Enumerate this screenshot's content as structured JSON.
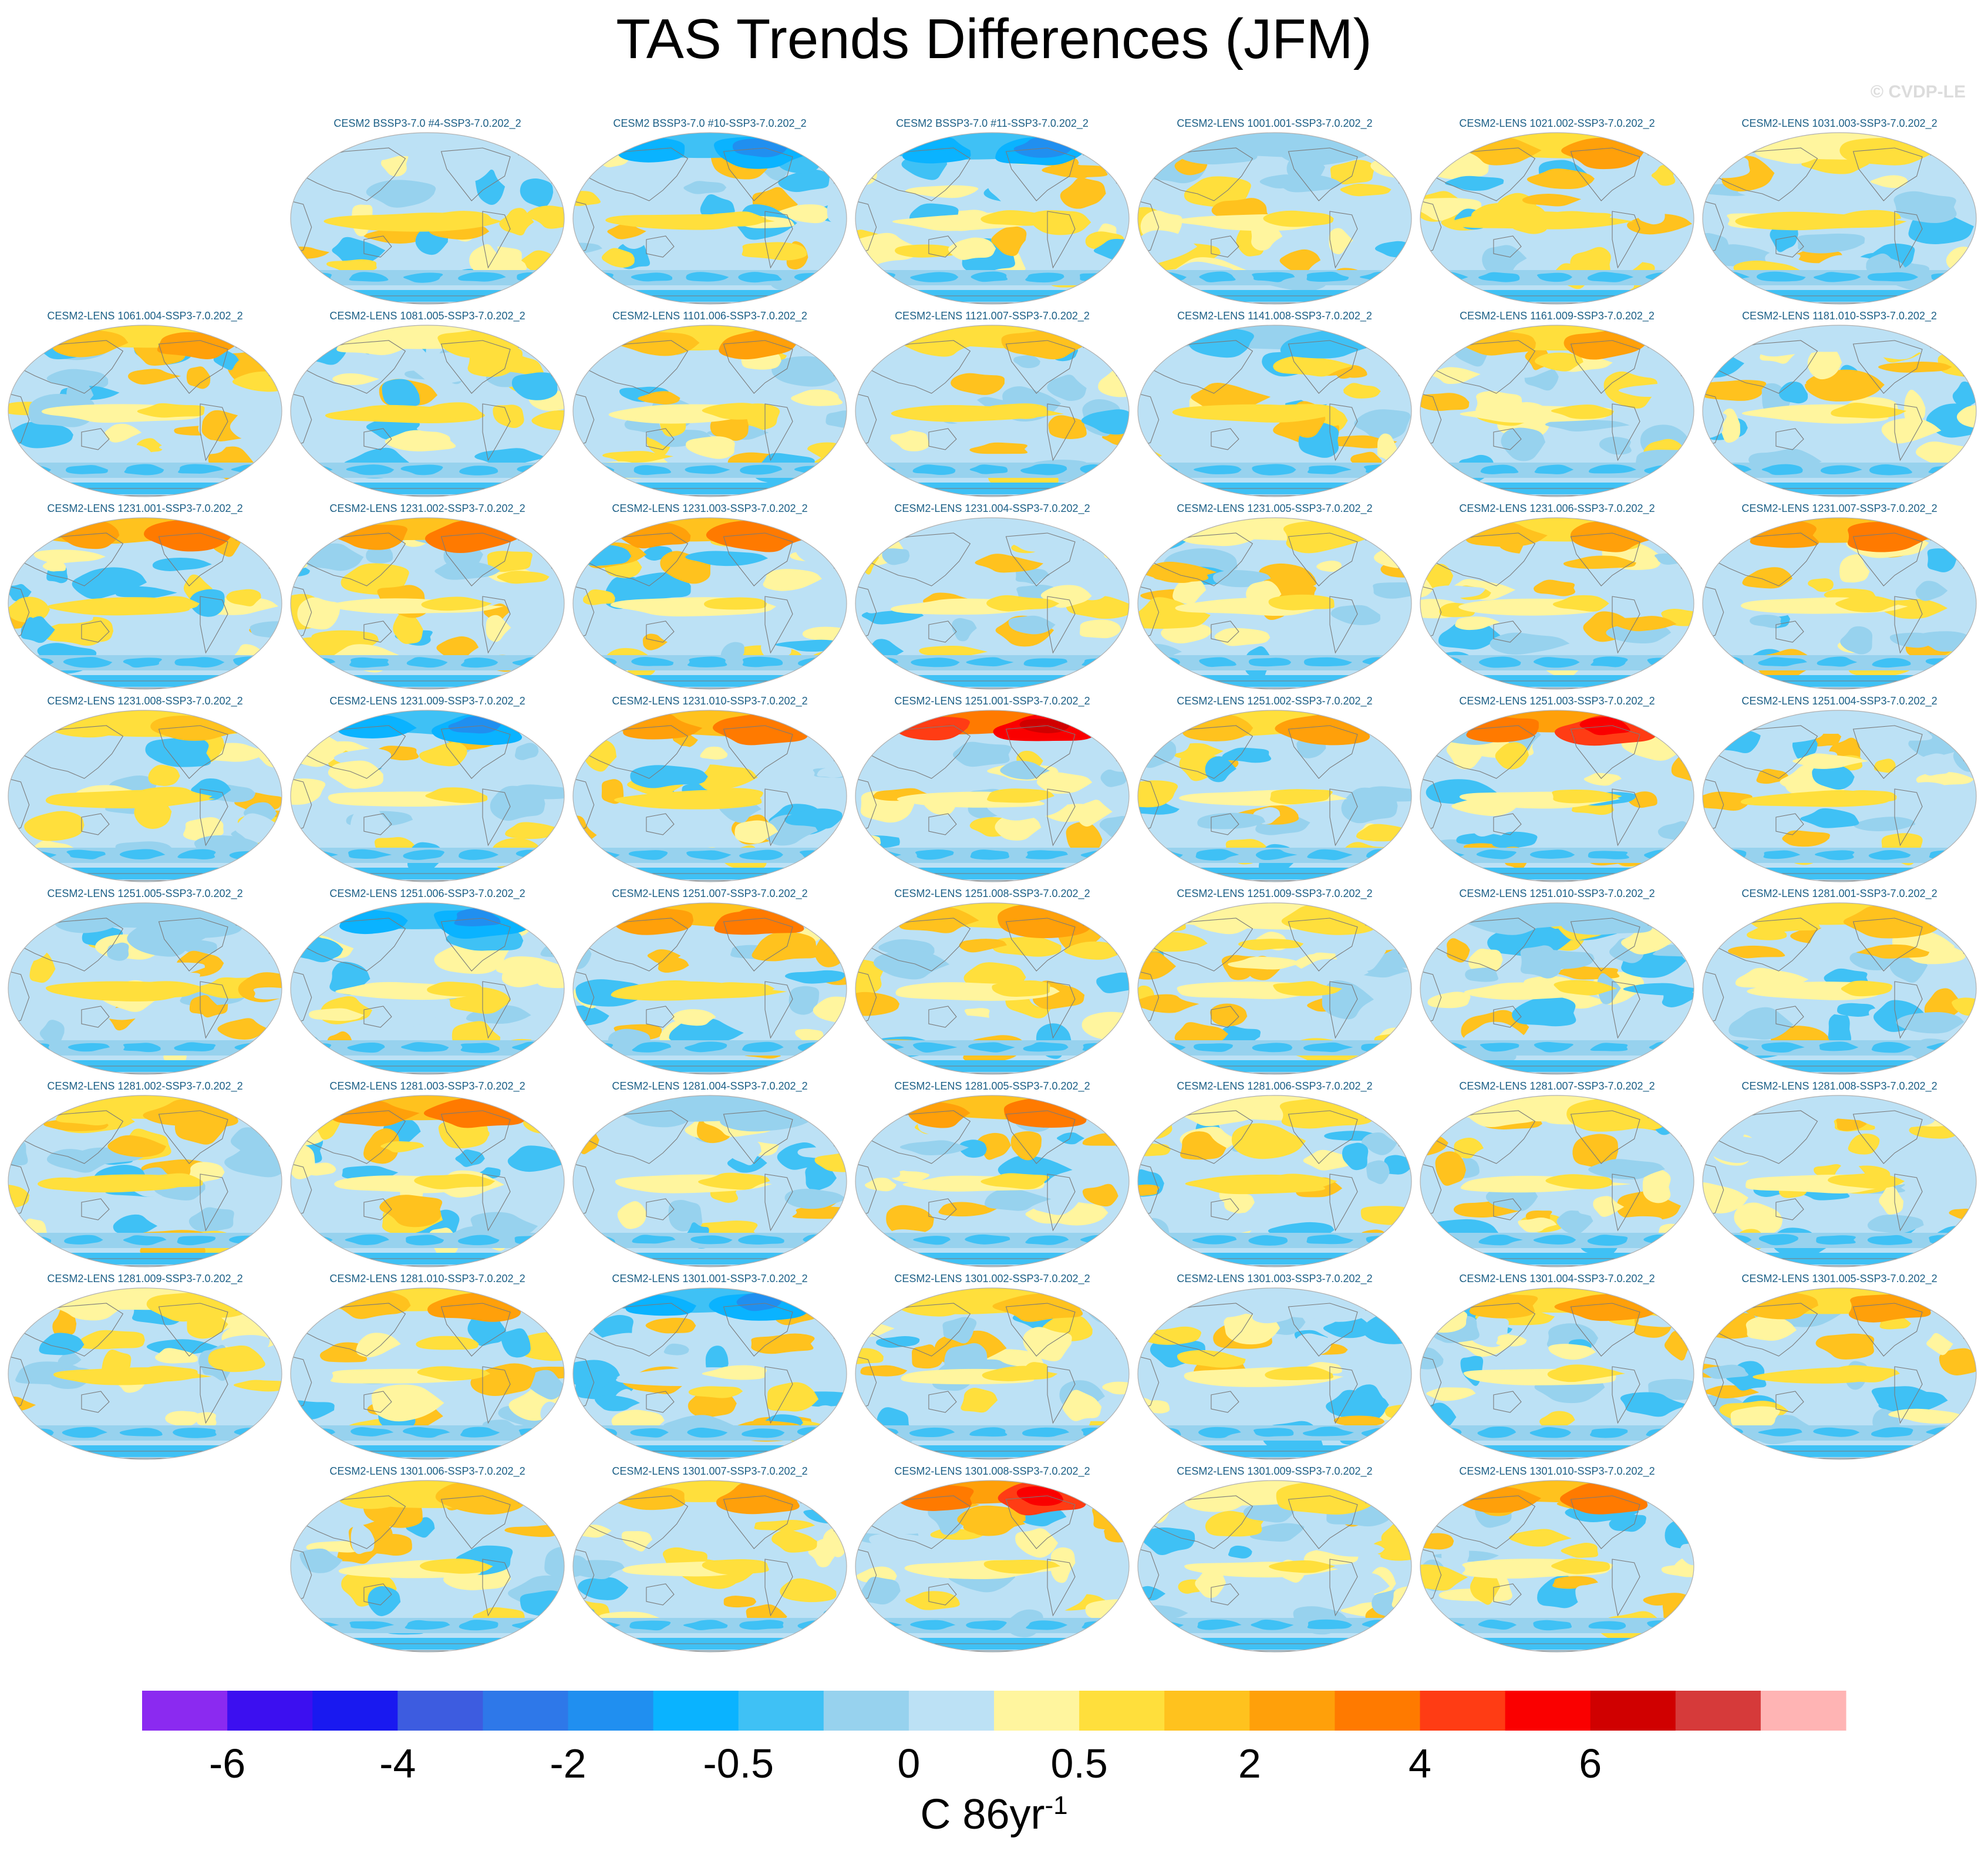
{
  "title": "TAS Trends Differences (JFM)",
  "watermark": "© CVDP-LE",
  "colorbar_units": {
    "base": "C 86yr",
    "exp": "-1"
  },
  "chart_data": {
    "type": "heatmap",
    "title": "TAS Trends Differences (JFM)",
    "map_projection": "Robinson-like global ellipse, Pacific-centered",
    "grid_columns": 7,
    "colorbar": {
      "colors": [
        "#8b2af0",
        "#3c0ff0",
        "#1919f0",
        "#3d5ce0",
        "#2e78e9",
        "#208ff0",
        "#0ab3ff",
        "#3fc1f5",
        "#97d2ee",
        "#bce1f5",
        "#fff59e",
        "#ffdf3c",
        "#ffc21e",
        "#ffa00a",
        "#ff7a00",
        "#ff3c14",
        "#fa0000",
        "#d00000",
        "#d63a3a",
        "#ffb4b4"
      ],
      "tick_labels": [
        "-6",
        "-4",
        "-2",
        "-0.5",
        "0",
        "0.5",
        "2",
        "4",
        "6"
      ],
      "tick_boundaries": [
        1,
        3,
        5,
        7,
        9,
        11,
        13,
        15,
        17
      ],
      "units": "C 86yr^-1"
    },
    "panels": [
      {
        "row": 0,
        "col": 1,
        "label": "CESM2 BSSP3-7.0 #4-SSP3-7.0.202_2",
        "arctic": -0.5,
        "enso": 0.5,
        "seed": 11
      },
      {
        "row": 0,
        "col": 2,
        "label": "CESM2 BSSP3-7.0 #10-SSP3-7.0.202_2",
        "arctic": -2,
        "enso": 0.5,
        "seed": 12
      },
      {
        "row": 0,
        "col": 3,
        "label": "CESM2 BSSP3-7.0 #11-SSP3-7.0.202_2",
        "arctic": -2,
        "enso": 0.3,
        "seed": 13
      },
      {
        "row": 0,
        "col": 4,
        "label": "CESM2-LENS 1001.001-SSP3-7.0.202_2",
        "arctic": -1,
        "enso": 0.3,
        "seed": 14
      },
      {
        "row": 0,
        "col": 5,
        "label": "CESM2-LENS 1021.002-SSP3-7.0.202_2",
        "arctic": 1.5,
        "enso": 0.5,
        "seed": 15
      },
      {
        "row": 0,
        "col": 6,
        "label": "CESM2-LENS 1031.003-SSP3-7.0.202_2",
        "arctic": 0.5,
        "enso": 0.5,
        "seed": 16
      },
      {
        "row": 1,
        "col": 0,
        "label": "CESM2-LENS 1061.004-SSP3-7.0.202_2",
        "arctic": 1.5,
        "enso": 0.3,
        "seed": 21
      },
      {
        "row": 1,
        "col": 1,
        "label": "CESM2-LENS 1081.005-SSP3-7.0.202_2",
        "arctic": 0.5,
        "enso": 0.5,
        "seed": 22
      },
      {
        "row": 1,
        "col": 2,
        "label": "CESM2-LENS 1101.006-SSP3-7.0.202_2",
        "arctic": 1.5,
        "enso": 0.3,
        "seed": 23
      },
      {
        "row": 1,
        "col": 3,
        "label": "CESM2-LENS 1121.007-SSP3-7.0.202_2",
        "arctic": 1,
        "enso": 0.5,
        "seed": 24
      },
      {
        "row": 1,
        "col": 4,
        "label": "CESM2-LENS 1141.008-SSP3-7.0.202_2",
        "arctic": -1.5,
        "enso": 0.5,
        "seed": 25
      },
      {
        "row": 1,
        "col": 5,
        "label": "CESM2-LENS 1161.009-SSP3-7.0.202_2",
        "arctic": 1.5,
        "enso": 0.3,
        "seed": 26
      },
      {
        "row": 1,
        "col": 6,
        "label": "CESM2-LENS 1181.010-SSP3-7.0.202_2",
        "arctic": -0.5,
        "enso": 0.3,
        "seed": 27
      },
      {
        "row": 2,
        "col": 0,
        "label": "CESM2-LENS 1231.001-SSP3-7.0.202_2",
        "arctic": 2,
        "enso": 0.5,
        "seed": 31
      },
      {
        "row": 2,
        "col": 1,
        "label": "CESM2-LENS 1231.002-SSP3-7.0.202_2",
        "arctic": 2,
        "enso": 0.3,
        "seed": 32
      },
      {
        "row": 2,
        "col": 2,
        "label": "CESM2-LENS 1231.003-SSP3-7.0.202_2",
        "arctic": 2,
        "enso": 0.3,
        "seed": 33
      },
      {
        "row": 2,
        "col": 3,
        "label": "CESM2-LENS 1231.004-SSP3-7.0.202_2",
        "arctic": -0.5,
        "enso": 0.3,
        "seed": 34
      },
      {
        "row": 2,
        "col": 4,
        "label": "CESM2-LENS 1231.005-SSP3-7.0.202_2",
        "arctic": 0.5,
        "enso": 0.3,
        "seed": 35
      },
      {
        "row": 2,
        "col": 5,
        "label": "CESM2-LENS 1231.006-SSP3-7.0.202_2",
        "arctic": 1.5,
        "enso": 0.3,
        "seed": 36
      },
      {
        "row": 2,
        "col": 6,
        "label": "CESM2-LENS 1231.007-SSP3-7.0.202_2",
        "arctic": 2,
        "enso": 0.3,
        "seed": 37
      },
      {
        "row": 3,
        "col": 0,
        "label": "CESM2-LENS 1231.008-SSP3-7.0.202_2",
        "arctic": 1,
        "enso": 0.5,
        "seed": 41
      },
      {
        "row": 3,
        "col": 1,
        "label": "CESM2-LENS 1231.009-SSP3-7.0.202_2",
        "arctic": -2,
        "enso": 0.3,
        "seed": 42
      },
      {
        "row": 3,
        "col": 2,
        "label": "CESM2-LENS 1231.010-SSP3-7.0.202_2",
        "arctic": 2,
        "enso": 0.5,
        "seed": 43
      },
      {
        "row": 3,
        "col": 3,
        "label": "CESM2-LENS 1251.001-SSP3-7.0.202_2",
        "arctic": 4,
        "enso": 0.3,
        "seed": 44
      },
      {
        "row": 3,
        "col": 4,
        "label": "CESM2-LENS 1251.002-SSP3-7.0.202_2",
        "arctic": 1.5,
        "enso": 0.3,
        "seed": 45
      },
      {
        "row": 3,
        "col": 5,
        "label": "CESM2-LENS 1251.003-SSP3-7.0.202_2",
        "arctic": 3,
        "enso": 0.3,
        "seed": 46
      },
      {
        "row": 3,
        "col": 6,
        "label": "CESM2-LENS 1251.004-SSP3-7.0.202_2",
        "arctic": -0.5,
        "enso": 0.5,
        "seed": 47
      },
      {
        "row": 4,
        "col": 0,
        "label": "CESM2-LENS 1251.005-SSP3-7.0.202_2",
        "arctic": -1,
        "enso": 0.5,
        "seed": 51
      },
      {
        "row": 4,
        "col": 1,
        "label": "CESM2-LENS 1251.006-SSP3-7.0.202_2",
        "arctic": -2,
        "enso": 0.3,
        "seed": 52
      },
      {
        "row": 4,
        "col": 2,
        "label": "CESM2-LENS 1251.007-SSP3-7.0.202_2",
        "arctic": 2,
        "enso": 0.5,
        "seed": 53
      },
      {
        "row": 4,
        "col": 3,
        "label": "CESM2-LENS 1251.008-SSP3-7.0.202_2",
        "arctic": 1.5,
        "enso": 0.3,
        "seed": 54
      },
      {
        "row": 4,
        "col": 4,
        "label": "CESM2-LENS 1251.009-SSP3-7.0.202_2",
        "arctic": 0.5,
        "enso": 0.3,
        "seed": 55
      },
      {
        "row": 4,
        "col": 5,
        "label": "CESM2-LENS 1251.010-SSP3-7.0.202_2",
        "arctic": -1,
        "enso": 0.3,
        "seed": 56
      },
      {
        "row": 4,
        "col": 6,
        "label": "CESM2-LENS 1281.001-SSP3-7.0.202_2",
        "arctic": 1,
        "enso": 0.3,
        "seed": 57
      },
      {
        "row": 5,
        "col": 0,
        "label": "CESM2-LENS 1281.002-SSP3-7.0.202_2",
        "arctic": 1,
        "enso": 0.5,
        "seed": 61
      },
      {
        "row": 5,
        "col": 1,
        "label": "CESM2-LENS 1281.003-SSP3-7.0.202_2",
        "arctic": 2,
        "enso": 0.3,
        "seed": 62
      },
      {
        "row": 5,
        "col": 2,
        "label": "CESM2-LENS 1281.004-SSP3-7.0.202_2",
        "arctic": -1,
        "enso": 0.3,
        "seed": 63
      },
      {
        "row": 5,
        "col": 3,
        "label": "CESM2-LENS 1281.005-SSP3-7.0.202_2",
        "arctic": 2,
        "enso": 0.3,
        "seed": 64
      },
      {
        "row": 5,
        "col": 4,
        "label": "CESM2-LENS 1281.006-SSP3-7.0.202_2",
        "arctic": 0.5,
        "enso": 0.5,
        "seed": 65
      },
      {
        "row": 5,
        "col": 5,
        "label": "CESM2-LENS 1281.007-SSP3-7.0.202_2",
        "arctic": 0.5,
        "enso": 0.3,
        "seed": 66
      },
      {
        "row": 5,
        "col": 6,
        "label": "CESM2-LENS 1281.008-SSP3-7.0.202_2",
        "arctic": -0.5,
        "enso": 0.3,
        "seed": 67
      },
      {
        "row": 6,
        "col": 0,
        "label": "CESM2-LENS 1281.009-SSP3-7.0.202_2",
        "arctic": 0.5,
        "enso": 0.5,
        "seed": 71
      },
      {
        "row": 6,
        "col": 1,
        "label": "CESM2-LENS 1281.010-SSP3-7.0.202_2",
        "arctic": 1.5,
        "enso": 0.3,
        "seed": 72
      },
      {
        "row": 6,
        "col": 2,
        "label": "CESM2-LENS 1301.001-SSP3-7.0.202_2",
        "arctic": -2,
        "enso": -0.3,
        "seed": 73
      },
      {
        "row": 6,
        "col": 3,
        "label": "CESM2-LENS 1301.002-SSP3-7.0.202_2",
        "arctic": 1,
        "enso": 0.3,
        "seed": 74
      },
      {
        "row": 6,
        "col": 4,
        "label": "CESM2-LENS 1301.003-SSP3-7.0.202_2",
        "arctic": -0.5,
        "enso": 0.3,
        "seed": 75
      },
      {
        "row": 6,
        "col": 5,
        "label": "CESM2-LENS 1301.004-SSP3-7.0.202_2",
        "arctic": 1.5,
        "enso": 0.3,
        "seed": 76
      },
      {
        "row": 6,
        "col": 6,
        "label": "CESM2-LENS 1301.005-SSP3-7.0.202_2",
        "arctic": 1.5,
        "enso": 0.5,
        "seed": 77
      },
      {
        "row": 7,
        "col": 1,
        "label": "CESM2-LENS 1301.006-SSP3-7.0.202_2",
        "arctic": 1,
        "enso": 0.3,
        "seed": 81
      },
      {
        "row": 7,
        "col": 2,
        "label": "CESM2-LENS 1301.007-SSP3-7.0.202_2",
        "arctic": 1.5,
        "enso": 0.3,
        "seed": 82
      },
      {
        "row": 7,
        "col": 3,
        "label": "CESM2-LENS 1301.008-SSP3-7.0.202_2",
        "arctic": 3,
        "enso": 0.3,
        "seed": 83
      },
      {
        "row": 7,
        "col": 4,
        "label": "CESM2-LENS 1301.009-SSP3-7.0.202_2",
        "arctic": 0.5,
        "enso": 0.3,
        "seed": 84
      },
      {
        "row": 7,
        "col": 5,
        "label": "CESM2-LENS 1301.010-SSP3-7.0.202_2",
        "arctic": 2,
        "enso": 0.3,
        "seed": 85
      }
    ]
  }
}
